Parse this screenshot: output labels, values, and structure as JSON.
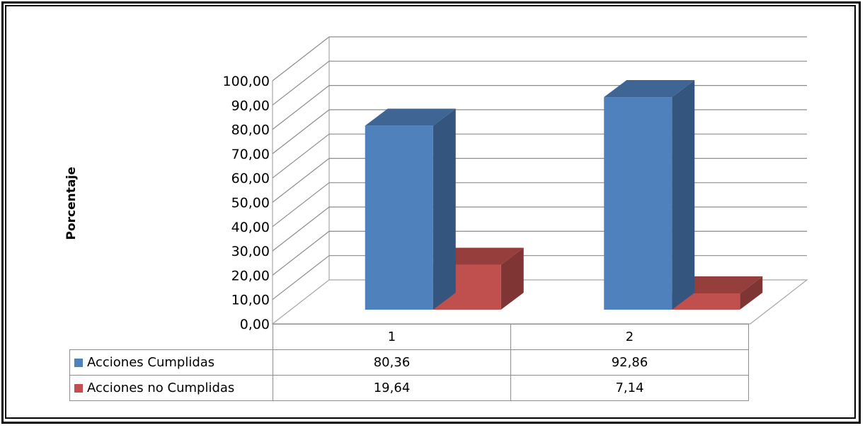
{
  "chart_data": {
    "type": "bar",
    "ylabel": "Porcentaje",
    "ylim": [
      0,
      100
    ],
    "yticks": [
      "0,00",
      "10,00",
      "20,00",
      "30,00",
      "40,00",
      "50,00",
      "60,00",
      "70,00",
      "80,00",
      "90,00",
      "100,00"
    ],
    "categories": [
      "1",
      "2"
    ],
    "series": [
      {
        "name": "Acciones Cumplidas",
        "values": [
          80.36,
          92.86
        ],
        "labels": [
          "80,36",
          "92,86"
        ],
        "color": "#4f81bd"
      },
      {
        "name": "Acciones no Cumplidas",
        "values": [
          19.64,
          7.14
        ],
        "labels": [
          "19,64",
          "7,14"
        ],
        "color": "#c0504d"
      }
    ],
    "grid": true,
    "legend": "data-table"
  }
}
